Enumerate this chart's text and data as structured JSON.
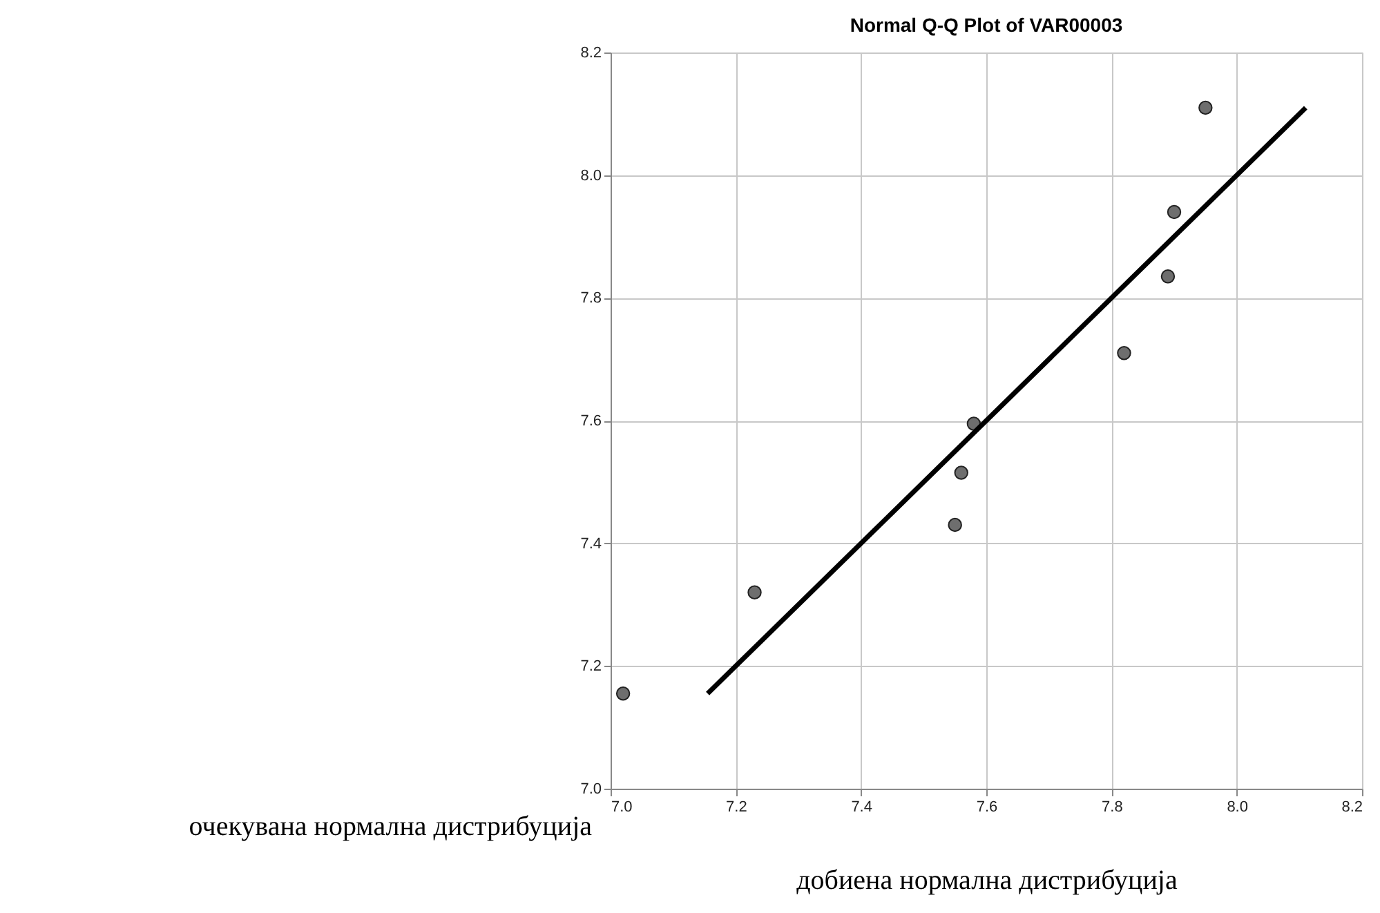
{
  "chart_data": {
    "type": "scatter",
    "title": "Normal Q-Q Plot of VAR00003",
    "xlabel": "добиена нормална дистрибуција",
    "ylabel": "очекувана нормална дистрибуција",
    "xlim": [
      7.0,
      8.2
    ],
    "ylim": [
      7.0,
      8.2
    ],
    "xticks": [
      {
        "value": 7,
        "label": "7.0"
      },
      7.2,
      7.4,
      7.6,
      7.8,
      {
        "value": 8,
        "label": "8.0"
      },
      8.2
    ],
    "yticks": [
      {
        "value": 7,
        "label": "7.0"
      },
      7.2,
      7.4,
      7.6,
      7.8,
      {
        "value": 8,
        "label": "8.0"
      },
      8.2
    ],
    "grid": true,
    "series": [
      {
        "color": "#6e6e6e",
        "marker": "circle",
        "x": [
          7.02,
          7.23,
          7.55,
          7.56,
          7.58,
          7.82,
          7.89,
          7.9,
          7.95
        ],
        "values": [
          7.155,
          7.32,
          7.43,
          7.515,
          7.595,
          7.71,
          7.835,
          7.94,
          8.11
        ]
      },
      {
        "type": "line",
        "color": "#000000",
        "marker": "none",
        "x": [
          7.155,
          8.11
        ],
        "values": [
          7.155,
          8.11
        ]
      }
    ]
  }
}
